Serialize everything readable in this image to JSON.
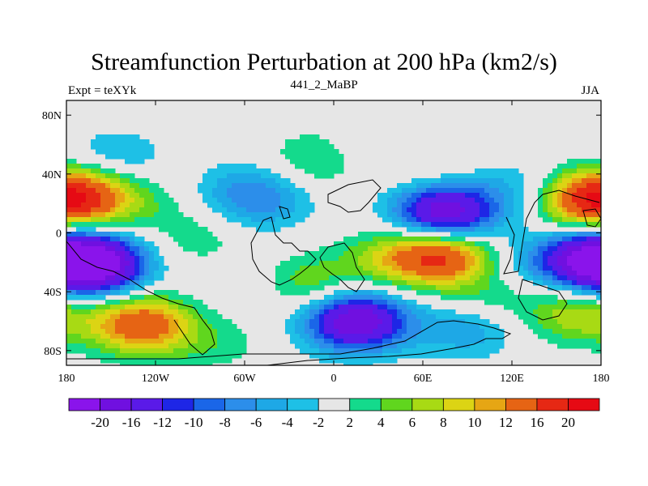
{
  "header": {
    "title": "Streamfunction Perturbation at 200 hPa (km2/s)",
    "left_label": "Expt = teXYk",
    "center_label": "441_2_MaBP",
    "right_label": "JJA"
  },
  "chart_data": {
    "type": "heatmap",
    "title": "Streamfunction Perturbation at 200 hPa (km2/s)",
    "xlim": [
      -180,
      180
    ],
    "ylim": [
      -90,
      90
    ],
    "x_ticks": [
      {
        "value": -180,
        "label": "180"
      },
      {
        "value": -120,
        "label": "120W"
      },
      {
        "value": -60,
        "label": "60W"
      },
      {
        "value": 0,
        "label": "0"
      },
      {
        "value": 60,
        "label": "60E"
      },
      {
        "value": 120,
        "label": "120E"
      },
      {
        "value": 180,
        "label": "180"
      }
    ],
    "y_ticks": [
      {
        "value": 80,
        "label": "80N"
      },
      {
        "value": 40,
        "label": "40N"
      },
      {
        "value": 0,
        "label": "0"
      },
      {
        "value": -40,
        "label": "40S"
      },
      {
        "value": -80,
        "label": "80S"
      }
    ],
    "grid": false,
    "legend": "bottom",
    "colorbar": {
      "levels": [
        -20,
        -16,
        -12,
        -10,
        -8,
        -6,
        -4,
        -2,
        2,
        4,
        6,
        8,
        10,
        12,
        16,
        20
      ],
      "level_labels": [
        "-20",
        "-16",
        "-12",
        "-10",
        "-8",
        "-6",
        "-4",
        "-2",
        "2",
        "4",
        "6",
        "8",
        "10",
        "12",
        "16",
        "20"
      ],
      "colors": [
        "#8A14EB",
        "#7010E0",
        "#5A1AE8",
        "#1E26E6",
        "#1A66E8",
        "#2C8EEA",
        "#1EA8E6",
        "#1EC0E6",
        "#E6E6E6",
        "#14DA8C",
        "#60D61E",
        "#A8DA14",
        "#DCD414",
        "#E6A614",
        "#E66414",
        "#E62814",
        "#E60A14"
      ]
    },
    "anomalies": [
      {
        "lon": -165,
        "lat": 25,
        "value": 12
      },
      {
        "lon": -140,
        "lat": 42,
        "value": 3
      },
      {
        "lon": -120,
        "lat": 15,
        "value": 2
      },
      {
        "lon": -160,
        "lat": -22,
        "value": -20
      },
      {
        "lon": -130,
        "lat": -62,
        "value": 15
      },
      {
        "lon": -80,
        "lat": -75,
        "value": 3
      },
      {
        "lon": -145,
        "lat": 48,
        "value": -7
      },
      {
        "lon": -60,
        "lat": 28,
        "value": -5
      },
      {
        "lon": -10,
        "lat": 50,
        "value": 5
      },
      {
        "lon": -45,
        "lat": 20,
        "value": -4
      },
      {
        "lon": -90,
        "lat": -5,
        "value": 3
      },
      {
        "lon": -20,
        "lat": -35,
        "value": 7
      },
      {
        "lon": -50,
        "lat": -35,
        "value": -3
      },
      {
        "lon": 25,
        "lat": 55,
        "value": -3
      },
      {
        "lon": 60,
        "lat": 45,
        "value": 3
      },
      {
        "lon": 75,
        "lat": 13,
        "value": -20
      },
      {
        "lon": 75,
        "lat": -15,
        "value": 16
      },
      {
        "lon": 40,
        "lat": -18,
        "value": 7
      },
      {
        "lon": 15,
        "lat": -60,
        "value": -20
      },
      {
        "lon": 90,
        "lat": -65,
        "value": -6
      },
      {
        "lon": 125,
        "lat": 30,
        "value": -4
      },
      {
        "lon": 170,
        "lat": 22,
        "value": 14
      },
      {
        "lon": 175,
        "lat": -18,
        "value": -18
      },
      {
        "lon": 165,
        "lat": -55,
        "value": 8
      },
      {
        "lon": 130,
        "lat": -20,
        "value": -4
      },
      {
        "lon": 105,
        "lat": -45,
        "value": 4
      }
    ]
  }
}
